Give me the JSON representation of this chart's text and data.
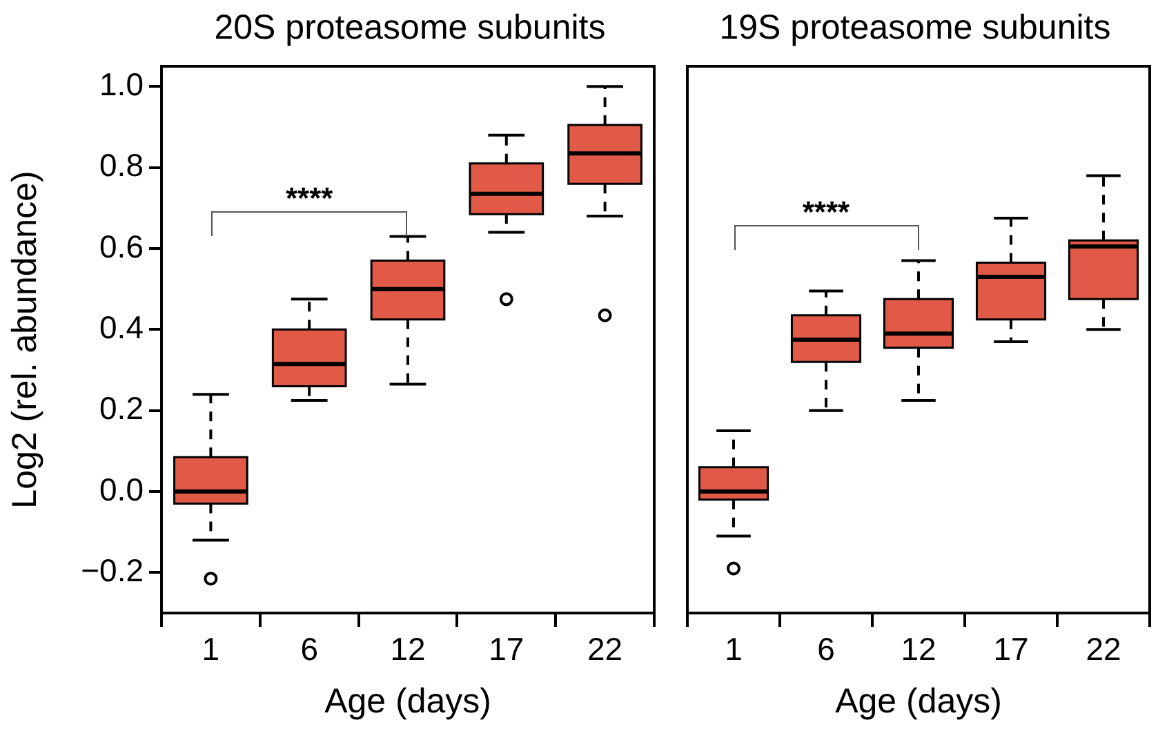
{
  "chart_data": [
    {
      "type": "box",
      "title": "20S proteasome subunits",
      "xlabel": "Age (days)",
      "ylabel": "Log2 (rel. abundance)",
      "categories": [
        "1",
        "6",
        "12",
        "17",
        "22"
      ],
      "color": "#e05a47",
      "boxes": [
        {
          "low": -0.12,
          "q1": -0.03,
          "median": 0.0,
          "q3": 0.085,
          "high": 0.24,
          "outliers": [
            -0.215
          ]
        },
        {
          "low": 0.225,
          "q1": 0.26,
          "median": 0.315,
          "q3": 0.4,
          "high": 0.475
        },
        {
          "low": 0.265,
          "q1": 0.425,
          "median": 0.5,
          "q3": 0.57,
          "high": 0.63
        },
        {
          "low": 0.64,
          "q1": 0.685,
          "median": 0.735,
          "q3": 0.81,
          "high": 0.88,
          "outliers": [
            0.475
          ]
        },
        {
          "low": 0.68,
          "q1": 0.76,
          "median": 0.835,
          "q3": 0.905,
          "high": 1.0,
          "outliers": [
            0.435
          ]
        }
      ],
      "ylim": [
        -0.3,
        1.05
      ],
      "yticks": [
        {
          "value": -0.2,
          "label": "−0.2"
        },
        {
          "value": 0,
          "label": "0.0"
        },
        {
          "value": 0.2,
          "label": "0.2"
        },
        {
          "value": 0.4,
          "label": "0.4"
        },
        {
          "value": 0.6,
          "label": "0.6"
        },
        {
          "value": 0.8,
          "label": "0.8"
        },
        {
          "value": 1,
          "label": "1.0"
        }
      ],
      "annotations": [
        "****"
      ]
    },
    {
      "type": "box",
      "title": "19S proteasome subunits",
      "xlabel": "Age (days)",
      "categories": [
        "1",
        "6",
        "12",
        "17",
        "22"
      ],
      "color": "#e05a47",
      "boxes": [
        {
          "low": -0.11,
          "q1": -0.02,
          "median": 0.0,
          "q3": 0.06,
          "high": 0.15,
          "outliers": [
            -0.19
          ]
        },
        {
          "low": 0.2,
          "q1": 0.32,
          "median": 0.375,
          "q3": 0.435,
          "high": 0.495
        },
        {
          "low": 0.225,
          "q1": 0.355,
          "median": 0.39,
          "q3": 0.475,
          "high": 0.57
        },
        {
          "low": 0.37,
          "q1": 0.425,
          "median": 0.53,
          "q3": 0.565,
          "high": 0.675
        },
        {
          "low": 0.4,
          "q1": 0.475,
          "median": 0.605,
          "q3": 0.62,
          "high": 0.78
        }
      ],
      "ylim": [
        -0.3,
        1.05
      ],
      "tick_labels": "x",
      "annotations": [
        "****"
      ]
    }
  ]
}
